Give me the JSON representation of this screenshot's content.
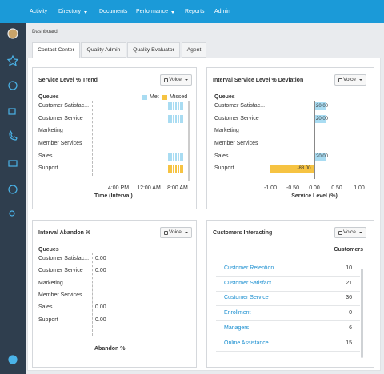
{
  "nav": [
    "Activity",
    "Directory",
    "Documents",
    "Performance",
    "Reports",
    "Admin"
  ],
  "breadcrumb": "Dashboard",
  "tabs": [
    "Contact Center",
    "Quality Admin",
    "Quality Evaluator",
    "Agent"
  ],
  "panels": {
    "trend": {
      "title": "Service Level % Trend",
      "button": "Voice",
      "legend": [
        "Met",
        "Missed"
      ],
      "queues_header": "Queues",
      "queues": [
        "Customer Satisfac...",
        "Customer Service",
        "Marketing",
        "Member Services",
        "Sales",
        "Support"
      ],
      "x_ticks": [
        "4:00 PM",
        "12:00 AM",
        "8:00 AM"
      ],
      "axis_title": "Time (Interval)"
    },
    "deviation": {
      "title": "Interval Service Level % Deviation",
      "button": "Voice",
      "queues_header": "Queues",
      "queues": [
        {
          "name": "Customer Satisfac...",
          "value": "20.00"
        },
        {
          "name": "Customer Service",
          "value": "20.00"
        },
        {
          "name": "Marketing",
          "value": null
        },
        {
          "name": "Member Services",
          "value": null
        },
        {
          "name": "Sales",
          "value": "20.00"
        },
        {
          "name": "Support",
          "value": "-88.00"
        }
      ],
      "x_ticks": [
        "-1.00",
        "-0.50",
        "0.00",
        "0.50",
        "1.00"
      ],
      "axis_title": "Service Level (%)"
    },
    "abandon": {
      "title": "Interval Abandon %",
      "button": "Voice",
      "queues_header": "Queues",
      "queues": [
        {
          "name": "Customer Satisfac...",
          "value": "0.00"
        },
        {
          "name": "Customer Service",
          "value": "0.00"
        },
        {
          "name": "Marketing",
          "value": null
        },
        {
          "name": "Member Services",
          "value": null
        },
        {
          "name": "Sales",
          "value": "0.00"
        },
        {
          "name": "Support",
          "value": "0.00"
        }
      ],
      "axis_title": "Abandon %"
    },
    "interacting": {
      "title": "Customers Interacting",
      "button": "Voice",
      "column": "Customers",
      "rows": [
        [
          "Customer Retention",
          10
        ],
        [
          "Customer Satisfact...",
          21
        ],
        [
          "Customer Service",
          36
        ],
        [
          "Enrollment",
          0
        ],
        [
          "Managers",
          6
        ],
        [
          "Online Assistance",
          15
        ]
      ]
    }
  }
}
